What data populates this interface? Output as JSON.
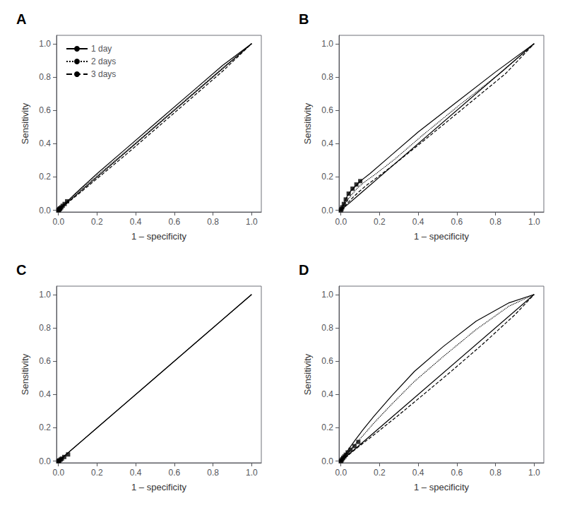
{
  "chart_data": [
    {
      "type": "line",
      "title": "A",
      "xlabel": "1 – specificity",
      "ylabel": "Sensitivity",
      "xlim": [
        -0.01,
        1.05
      ],
      "ylim": [
        -0.01,
        1.05
      ],
      "xticks": [
        {
          "value": 0.0,
          "label": "0.0"
        },
        0.2,
        0.4,
        0.6,
        0.8,
        {
          "value": 1.0,
          "label": "1.0"
        }
      ],
      "yticks": [
        {
          "value": 0.0,
          "label": "0.0"
        },
        0.2,
        0.4,
        0.6,
        0.8,
        {
          "value": 1.0,
          "label": "1.0"
        }
      ],
      "grid": false,
      "legend": "upper left",
      "series": [
        {
          "type": "line",
          "line_style": "solid",
          "color": "#000000",
          "x": [
            0,
            1
          ],
          "values": [
            0,
            1
          ]
        },
        {
          "type": "line",
          "name": "1 day",
          "line_style": "solid",
          "color": "#000000",
          "x": [
            0.0,
            0.005,
            0.01,
            0.015,
            0.02,
            0.03,
            0.05,
            0.08,
            0.12,
            0.2,
            0.35,
            0.5,
            0.7,
            0.85,
            1.0
          ],
          "values": [
            0.0,
            0.006,
            0.012,
            0.018,
            0.025,
            0.036,
            0.058,
            0.092,
            0.135,
            0.22,
            0.37,
            0.52,
            0.72,
            0.87,
            1.0
          ]
        },
        {
          "type": "line",
          "name": "2 days",
          "line_style": "dotted",
          "color": "#000000",
          "x": [
            0.0,
            0.005,
            0.01,
            0.015,
            0.02,
            0.03,
            0.05,
            0.08,
            0.12,
            0.2,
            0.35,
            0.5,
            0.7,
            0.85,
            1.0
          ],
          "values": [
            0.0,
            0.005,
            0.011,
            0.016,
            0.022,
            0.033,
            0.054,
            0.087,
            0.128,
            0.208,
            0.355,
            0.505,
            0.705,
            0.855,
            1.0
          ]
        },
        {
          "type": "line",
          "name": "3 days",
          "line_style": "dashed",
          "color": "#000000",
          "x": [
            0.0,
            0.005,
            0.01,
            0.015,
            0.02,
            0.03,
            0.05,
            0.08,
            0.12,
            0.2,
            0.35,
            0.5,
            0.7,
            0.85,
            1.0
          ],
          "values": [
            0.0,
            0.004,
            0.009,
            0.013,
            0.018,
            0.028,
            0.047,
            0.076,
            0.113,
            0.19,
            0.335,
            0.485,
            0.685,
            0.835,
            1.0
          ]
        },
        {
          "type": "scatter",
          "marker": "square",
          "color": "#000000",
          "x": [
            0.0,
            0.002,
            0.004,
            0.006,
            0.008,
            0.01,
            0.015,
            0.022,
            0.032,
            0.045
          ],
          "values": [
            0.0,
            0.002,
            0.005,
            0.008,
            0.01,
            0.012,
            0.018,
            0.027,
            0.038,
            0.054
          ]
        }
      ]
    },
    {
      "type": "line",
      "title": "B",
      "xlabel": "1 – specificity",
      "ylabel": "Sensitivity",
      "xlim": [
        -0.01,
        1.05
      ],
      "ylim": [
        -0.01,
        1.05
      ],
      "xticks": [
        {
          "value": 0.0,
          "label": "0.0"
        },
        0.2,
        0.4,
        0.6,
        0.8,
        {
          "value": 1.0,
          "label": "1.0"
        }
      ],
      "yticks": [
        {
          "value": 0.0,
          "label": "0.0"
        },
        0.2,
        0.4,
        0.6,
        0.8,
        {
          "value": 1.0,
          "label": "1.0"
        }
      ],
      "grid": false,
      "series": [
        {
          "type": "line",
          "line_style": "solid",
          "color": "#000000",
          "x": [
            0,
            1
          ],
          "values": [
            0,
            1
          ]
        },
        {
          "type": "line",
          "line_style": "solid",
          "color": "#000000",
          "x": [
            0.0,
            0.005,
            0.01,
            0.02,
            0.03,
            0.05,
            0.08,
            0.1,
            0.15,
            0.25,
            0.4,
            0.6,
            0.8,
            1.0
          ],
          "values": [
            0.0,
            0.012,
            0.025,
            0.05,
            0.08,
            0.115,
            0.15,
            0.175,
            0.22,
            0.32,
            0.47,
            0.65,
            0.83,
            1.0
          ]
        },
        {
          "type": "line",
          "line_style": "dotted",
          "color": "#000000",
          "x": [
            0.0,
            0.005,
            0.01,
            0.02,
            0.035,
            0.055,
            0.085,
            0.12,
            0.18,
            0.28,
            0.42,
            0.62,
            0.82,
            1.0
          ],
          "values": [
            0.0,
            0.009,
            0.018,
            0.037,
            0.062,
            0.093,
            0.133,
            0.168,
            0.218,
            0.308,
            0.448,
            0.638,
            0.818,
            1.0
          ]
        },
        {
          "type": "line",
          "line_style": "dashed",
          "color": "#000000",
          "x": [
            0.0,
            0.006,
            0.012,
            0.025,
            0.04,
            0.06,
            0.09,
            0.13,
            0.2,
            0.3,
            0.45,
            0.65,
            0.85,
            1.0
          ],
          "values": [
            0.0,
            0.007,
            0.015,
            0.03,
            0.05,
            0.075,
            0.108,
            0.148,
            0.208,
            0.298,
            0.438,
            0.628,
            0.818,
            1.0
          ]
        },
        {
          "type": "scatter",
          "marker": "square",
          "color": "#000000",
          "x": [
            0.0,
            0.003,
            0.007,
            0.015,
            0.025,
            0.04,
            0.06,
            0.08,
            0.1
          ],
          "values": [
            0.0,
            0.008,
            0.018,
            0.038,
            0.065,
            0.1,
            0.13,
            0.155,
            0.175
          ]
        }
      ]
    },
    {
      "type": "line",
      "title": "C",
      "xlabel": "1 – specificity",
      "ylabel": "Sensitivity",
      "xlim": [
        -0.01,
        1.05
      ],
      "ylim": [
        -0.01,
        1.05
      ],
      "xticks": [
        {
          "value": 0.0,
          "label": "0.0"
        },
        0.2,
        0.4,
        0.6,
        0.8,
        {
          "value": 1.0,
          "label": "1.0"
        }
      ],
      "yticks": [
        {
          "value": 0.0,
          "label": "0.0"
        },
        0.2,
        0.4,
        0.6,
        0.8,
        {
          "value": 1.0,
          "label": "1.0"
        }
      ],
      "grid": false,
      "series": [
        {
          "type": "line",
          "line_style": "solid",
          "color": "#000000",
          "x": [
            0,
            1
          ],
          "values": [
            0,
            1
          ]
        },
        {
          "type": "line",
          "line_style": "solid",
          "color": "#000000",
          "x": [
            0.0,
            0.005,
            0.01,
            0.015,
            0.02,
            0.03,
            0.05,
            0.08,
            0.12,
            0.2,
            0.35,
            0.5,
            0.7,
            0.85,
            1.0
          ],
          "values": [
            0.0,
            0.005,
            0.01,
            0.015,
            0.02,
            0.03,
            0.05,
            0.08,
            0.12,
            0.2,
            0.35,
            0.5,
            0.7,
            0.85,
            1.0
          ]
        },
        {
          "type": "scatter",
          "marker": "square",
          "color": "#000000",
          "x": [
            0.0,
            0.003,
            0.006,
            0.012,
            0.018,
            0.03,
            0.05
          ],
          "values": [
            0.0,
            0.002,
            0.005,
            0.01,
            0.015,
            0.025,
            0.04
          ]
        }
      ]
    },
    {
      "type": "line",
      "title": "D",
      "xlabel": "1 – specificity",
      "ylabel": "Sensitivity",
      "xlim": [
        -0.01,
        1.05
      ],
      "ylim": [
        -0.01,
        1.05
      ],
      "xticks": [
        {
          "value": 0.0,
          "label": "0.0"
        },
        0.2,
        0.4,
        0.6,
        0.8,
        {
          "value": 1.0,
          "label": "1.0"
        }
      ],
      "yticks": [
        {
          "value": 0.0,
          "label": "0.0"
        },
        0.2,
        0.4,
        0.6,
        0.8,
        {
          "value": 1.0,
          "label": "1.0"
        }
      ],
      "grid": false,
      "series": [
        {
          "type": "line",
          "line_style": "solid",
          "color": "#000000",
          "x": [
            0,
            1
          ],
          "values": [
            0,
            1
          ]
        },
        {
          "type": "line",
          "line_style": "solid",
          "color": "#000000",
          "x": [
            0.0,
            0.004,
            0.008,
            0.013,
            0.018,
            0.025,
            0.035,
            0.05,
            0.075,
            0.11,
            0.17,
            0.26,
            0.38,
            0.53,
            0.7,
            0.87,
            1.0
          ],
          "values": [
            0.0,
            0.007,
            0.015,
            0.024,
            0.033,
            0.046,
            0.063,
            0.088,
            0.128,
            0.182,
            0.268,
            0.388,
            0.538,
            0.688,
            0.84,
            0.95,
            1.0
          ]
        },
        {
          "type": "line",
          "line_style": "dotted",
          "color": "#000000",
          "x": [
            0.0,
            0.004,
            0.008,
            0.013,
            0.018,
            0.025,
            0.035,
            0.05,
            0.075,
            0.11,
            0.17,
            0.26,
            0.38,
            0.53,
            0.7,
            0.87,
            1.0
          ],
          "values": [
            0.0,
            0.005,
            0.011,
            0.018,
            0.025,
            0.035,
            0.049,
            0.069,
            0.102,
            0.148,
            0.228,
            0.338,
            0.478,
            0.628,
            0.79,
            0.93,
            1.0
          ]
        },
        {
          "type": "line",
          "line_style": "dashed",
          "color": "#000000",
          "x": [
            0.0,
            0.005,
            0.01,
            0.016,
            0.022,
            0.03,
            0.042,
            0.06,
            0.088,
            0.13,
            0.195,
            0.29,
            0.415,
            0.565,
            0.73,
            0.9,
            1.0
          ],
          "values": [
            0.0,
            0.004,
            0.009,
            0.015,
            0.021,
            0.029,
            0.04,
            0.057,
            0.083,
            0.121,
            0.18,
            0.268,
            0.388,
            0.533,
            0.698,
            0.878,
            1.0
          ]
        },
        {
          "type": "scatter",
          "marker": "square",
          "color": "#000000",
          "x": [
            0.0,
            0.003,
            0.007,
            0.012,
            0.018,
            0.025,
            0.035,
            0.05,
            0.07,
            0.09
          ],
          "values": [
            0.0,
            0.005,
            0.012,
            0.02,
            0.028,
            0.038,
            0.052,
            0.068,
            0.09,
            0.115
          ]
        }
      ]
    }
  ]
}
